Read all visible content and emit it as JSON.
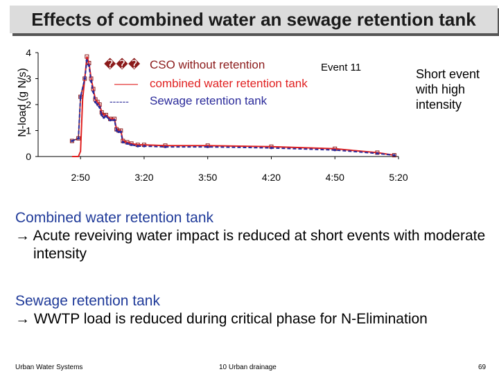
{
  "slide": {
    "title": "Effects of combined water an sewage retention tank",
    "note": [
      "Short event",
      "with high",
      "intensity"
    ],
    "sections": [
      {
        "heading": "Combined water retention tank",
        "bullet": "→ Acute reveiving water impact is reduced at short events with moderate intensity"
      },
      {
        "heading": "Sewage retention tank",
        "bullet": "→ WWTP load is reduced during critical phase for N-Elimination"
      }
    ],
    "footer": {
      "left": "Urban Water Systems",
      "center": "10  Urban drainage",
      "right": "69"
    }
  },
  "chart_data": {
    "type": "line",
    "title": "",
    "ylabel": "N-load (g N/s)",
    "xlabel": "",
    "annotation": "Event 11",
    "xlim": [
      "2:30",
      "5:20"
    ],
    "ylim": [
      0,
      4
    ],
    "x_ticks": [
      "2:50",
      "3:20",
      "3:50",
      "4:20",
      "4:50",
      "5:20"
    ],
    "y_ticks": [
      "0",
      "1",
      "2",
      "3",
      "4"
    ],
    "legend": [
      {
        "symbol": "���",
        "text": "CSO without retention"
      },
      {
        "symbol": "——",
        "text": "combined water retention tank"
      },
      {
        "symbol": "------",
        "text": "Sewage retention tank"
      }
    ],
    "series": [
      {
        "name": "CSO without retention",
        "color": "#8b1a1a",
        "x": [
          "2:46",
          "2:49",
          "2:50",
          "2:52",
          "2:53",
          "2:54",
          "2:55",
          "2:56",
          "2:57",
          "2:58",
          "2:59",
          "3:00",
          "3:01",
          "3:02",
          "3:04",
          "3:06",
          "3:07",
          "3:08",
          "3:09",
          "3:10",
          "3:12",
          "3:14",
          "3:17",
          "3:20",
          "3:30",
          "3:50",
          "4:20",
          "4:50",
          "5:10",
          "5:18"
        ],
        "y": [
          0.6,
          0.7,
          2.3,
          3.0,
          3.85,
          3.6,
          3.0,
          2.6,
          2.2,
          2.1,
          2.0,
          1.7,
          1.6,
          1.6,
          1.45,
          1.45,
          1.05,
          1.0,
          1.0,
          0.6,
          0.55,
          0.5,
          0.45,
          0.45,
          0.42,
          0.42,
          0.38,
          0.3,
          0.15,
          0.05
        ]
      },
      {
        "name": "combined water retention tank",
        "color": "#e02020",
        "x": [
          "2:46",
          "2:49",
          "2:50",
          "2:51",
          "2:52",
          "2:53",
          "2:54",
          "2:55",
          "2:56",
          "2:57",
          "2:58",
          "2:59",
          "3:00",
          "3:01",
          "3:02",
          "3:04",
          "3:06",
          "3:07",
          "3:08",
          "3:09",
          "3:10",
          "3:12",
          "3:14",
          "3:17",
          "3:20",
          "3:30",
          "3:50",
          "4:20",
          "4:50",
          "5:10",
          "5:18"
        ],
        "y": [
          0,
          0,
          0.2,
          2.2,
          3.0,
          3.85,
          3.6,
          3.0,
          2.6,
          2.2,
          2.1,
          2.0,
          1.7,
          1.6,
          1.6,
          1.45,
          1.45,
          1.05,
          1.0,
          1.0,
          0.6,
          0.55,
          0.5,
          0.45,
          0.45,
          0.42,
          0.42,
          0.38,
          0.3,
          0.15,
          0.05
        ]
      },
      {
        "name": "Sewage retention tank",
        "color": "#2a2a9a",
        "x": [
          "2:46",
          "2:49",
          "2:50",
          "2:52",
          "2:53",
          "2:54",
          "2:55",
          "2:56",
          "2:57",
          "2:58",
          "2:59",
          "3:00",
          "3:01",
          "3:02",
          "3:04",
          "3:06",
          "3:07",
          "3:08",
          "3:09",
          "3:10",
          "3:12",
          "3:14",
          "3:17",
          "3:20",
          "3:30",
          "3:50",
          "4:20",
          "4:50",
          "5:10",
          "5:18"
        ],
        "y": [
          0.6,
          0.7,
          2.3,
          3.0,
          3.7,
          3.5,
          2.9,
          2.5,
          2.1,
          2.0,
          1.9,
          1.6,
          1.5,
          1.55,
          1.4,
          1.4,
          1.0,
          0.95,
          0.95,
          0.55,
          0.5,
          0.45,
          0.4,
          0.4,
          0.37,
          0.37,
          0.33,
          0.25,
          0.12,
          0.05
        ]
      }
    ]
  }
}
